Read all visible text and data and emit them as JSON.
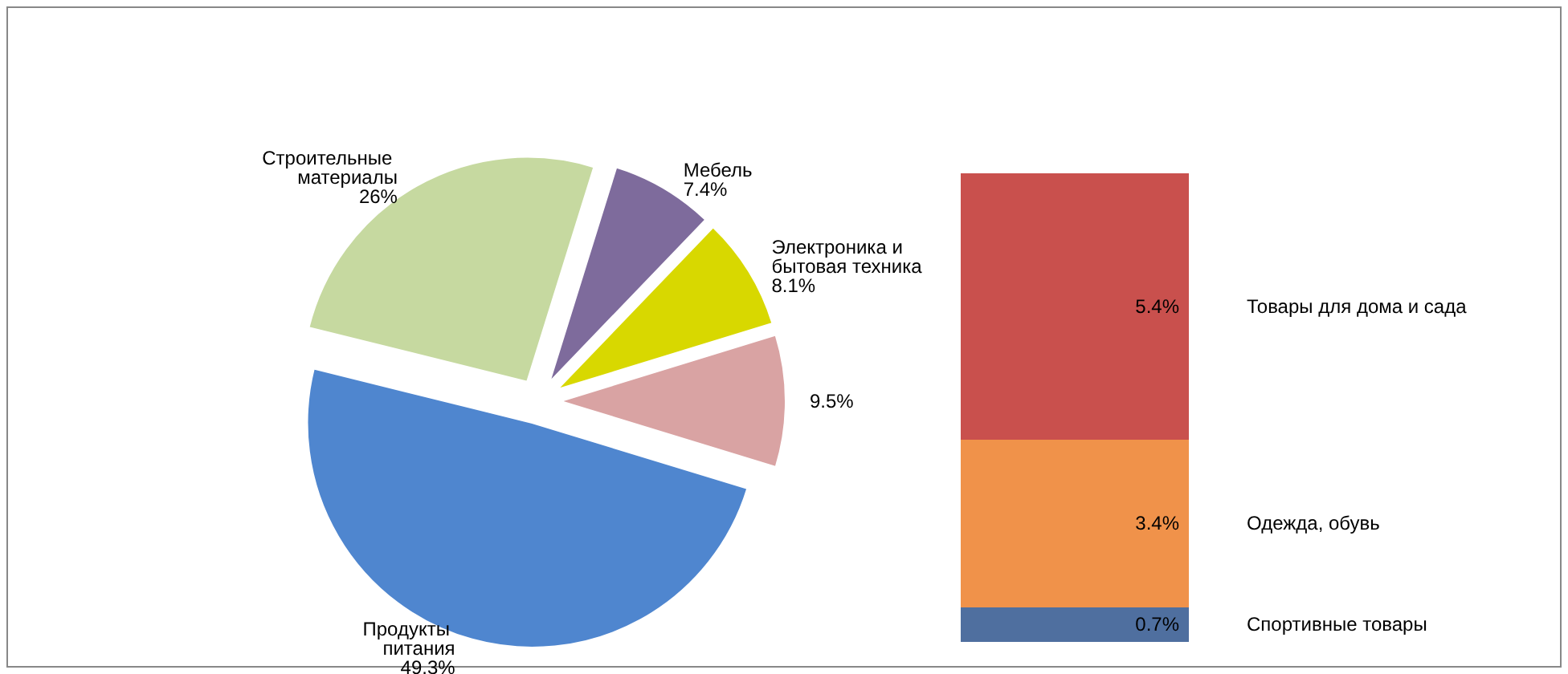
{
  "chart_data": [
    {
      "type": "pie",
      "categories": [
        "Продукты питания",
        "Строительные материалы",
        "Мебель",
        "Электроника и бытовая техника",
        null
      ],
      "values": [
        49.3,
        26,
        7.4,
        8.1,
        9.5
      ],
      "value_labels": [
        "49.3%",
        "26%",
        "7.4%",
        "8.1%",
        "9.5%"
      ],
      "colors": [
        "#4f86cf",
        "#c6d9a0",
        "#7e6b9c",
        "#d8d800",
        "#d9a3a3"
      ]
    },
    {
      "type": "bar",
      "stacked": true,
      "categories": [
        null
      ],
      "tick_labels": false,
      "series": [
        {
          "name": "Спортивные товары",
          "color": "#4f6f9f",
          "values": [
            0.7
          ],
          "value_labels": [
            "0.7%"
          ]
        },
        {
          "name": "Одежда, обувь",
          "color": "#f0924a",
          "values": [
            3.4
          ],
          "value_labels": [
            "3.4%"
          ]
        },
        {
          "name": "Товары для дома и сада",
          "color": "#c9504d",
          "values": [
            5.4
          ],
          "value_labels": [
            "5.4%"
          ]
        }
      ]
    }
  ]
}
